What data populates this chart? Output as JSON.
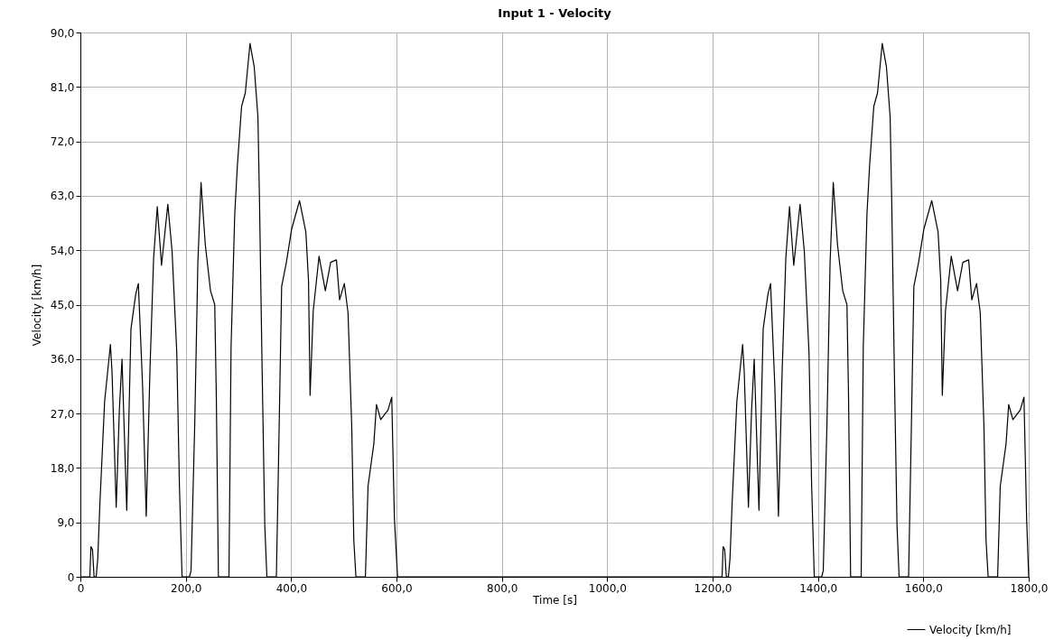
{
  "chart_data": {
    "type": "line",
    "title": "Input 1 - Velocity",
    "xlabel": "Time [s]",
    "ylabel": "Velocity [km/h]",
    "series": [
      {
        "name": "Velocity [km/h]",
        "color": "#000000",
        "x": [
          0,
          18,
          20,
          23,
          26,
          30,
          33,
          37,
          46,
          57,
          60,
          68,
          74,
          79,
          88,
          96,
          105,
          110,
          118,
          125,
          132,
          139,
          146,
          154,
          166,
          174,
          183,
          188,
          193,
          207,
          210,
          217,
          223,
          229,
          237,
          247,
          255,
          258,
          262,
          282,
          286,
          293,
          298,
          306,
          313,
          322,
          330,
          337,
          340,
          345,
          350,
          354,
          372,
          377,
          382,
          391,
          401,
          416,
          428,
          433,
          436,
          442,
          453,
          465,
          475,
          486,
          492,
          501,
          508,
          515,
          519,
          523,
          541,
          546,
          557,
          562,
          570,
          584,
          591,
          596,
          602,
          1218,
          1220,
          1223,
          1226,
          1230,
          1233,
          1237,
          1246,
          1257,
          1260,
          1268,
          1274,
          1279,
          1288,
          1296,
          1305,
          1310,
          1318,
          1325,
          1332,
          1339,
          1346,
          1354,
          1366,
          1374,
          1383,
          1388,
          1393,
          1407,
          1410,
          1417,
          1423,
          1429,
          1437,
          1447,
          1455,
          1458,
          1462,
          1482,
          1486,
          1493,
          1498,
          1506,
          1513,
          1522,
          1530,
          1537,
          1540,
          1545,
          1550,
          1554,
          1572,
          1577,
          1582,
          1591,
          1601,
          1616,
          1628,
          1633,
          1636,
          1642,
          1653,
          1665,
          1675,
          1686,
          1692,
          1701,
          1708,
          1715,
          1719,
          1723,
          1741,
          1746,
          1757,
          1762,
          1770,
          1784,
          1791,
          1796,
          1800
        ],
        "values": [
          0,
          0,
          5,
          4.5,
          0,
          0,
          3,
          12,
          29,
          38.4,
          34,
          11.5,
          27.6,
          36,
          11,
          41,
          46.7,
          48.5,
          31.8,
          10,
          34,
          52.7,
          61.2,
          51.5,
          61.6,
          53.9,
          37,
          15,
          0,
          0,
          1,
          25,
          52,
          65.2,
          55,
          47.3,
          45,
          30,
          0,
          0,
          38,
          60,
          68,
          77.8,
          80,
          88.2,
          84.3,
          76,
          62,
          34,
          8.5,
          0,
          0,
          23.4,
          48,
          52,
          57.5,
          62.2,
          57,
          49,
          30,
          44,
          53,
          47.3,
          52,
          52.4,
          45.8,
          48.5,
          43.7,
          25,
          6,
          0,
          0,
          15,
          22,
          28.5,
          26,
          27.6,
          29.7,
          9.7,
          0,
          0,
          5,
          4.5,
          0,
          0,
          3,
          12,
          29,
          38.4,
          34,
          11.5,
          27.6,
          36,
          11,
          41,
          46.7,
          48.5,
          31.8,
          10,
          34,
          52.7,
          61.2,
          51.5,
          61.6,
          53.9,
          37,
          15,
          0,
          0,
          1,
          25,
          52,
          65.2,
          55,
          47.3,
          45,
          30,
          0,
          0,
          38,
          60,
          68,
          77.8,
          80,
          88.2,
          84.3,
          76,
          62,
          34,
          8.5,
          0,
          0,
          23.4,
          48,
          52,
          57.5,
          62.2,
          57,
          49,
          30,
          44,
          53,
          47.3,
          52,
          52.4,
          45.8,
          48.5,
          43.7,
          25,
          6,
          0,
          0,
          15,
          22,
          28.5,
          26,
          27.6,
          29.7,
          9.7,
          0
        ]
      }
    ],
    "xlim": [
      0,
      1800
    ],
    "ylim": [
      0,
      90
    ],
    "xticks": [
      0,
      {
        "value": 200,
        "label": "200,0"
      },
      {
        "value": 400,
        "label": "400,0"
      },
      {
        "value": 600,
        "label": "600,0"
      },
      {
        "value": 800,
        "label": "800,0"
      },
      {
        "value": 1000,
        "label": "1000,0"
      },
      {
        "value": 1200,
        "label": "1200,0"
      },
      {
        "value": 1400,
        "label": "1400,0"
      },
      {
        "value": 1600,
        "label": "1600,0"
      },
      {
        "value": 1800,
        "label": "1800,0"
      }
    ],
    "yticks": [
      0,
      {
        "value": 9,
        "label": "9,0"
      },
      {
        "value": 18,
        "label": "18,0"
      },
      {
        "value": 27,
        "label": "27,0"
      },
      {
        "value": 36,
        "label": "36,0"
      },
      {
        "value": 45,
        "label": "45,0"
      },
      {
        "value": 54,
        "label": "54,0"
      },
      {
        "value": 63,
        "label": "63,0"
      },
      {
        "value": 72,
        "label": "72,0"
      },
      {
        "value": 81,
        "label": "81,0"
      },
      {
        "value": 90,
        "label": "90,0"
      }
    ],
    "grid": true,
    "legend": "bottom right",
    "marker": "none",
    "line_style": "solid"
  }
}
